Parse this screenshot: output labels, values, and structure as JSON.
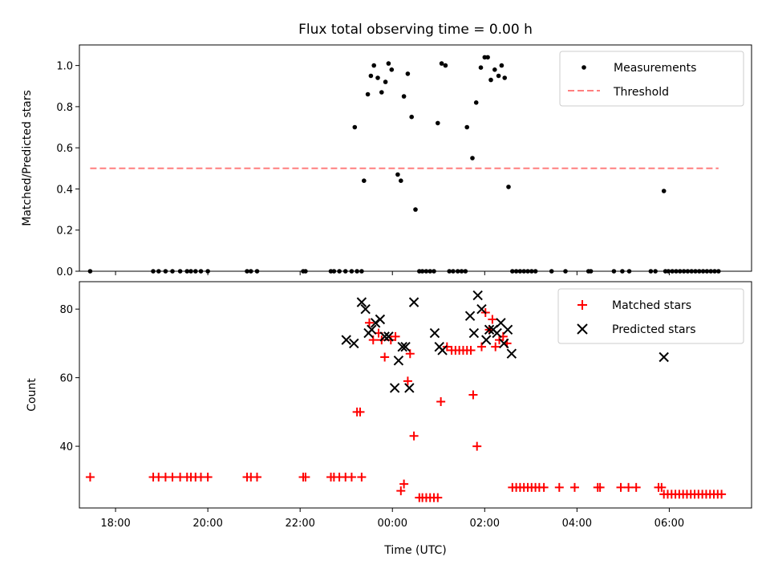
{
  "chart_data": [
    {
      "type": "scatter",
      "title": "Flux total observing time = 0.00 h",
      "xlabel": "",
      "ylabel": "Matched/Predicted stars",
      "xlim": [
        "17:13",
        "07:47"
      ],
      "ylim": [
        0,
        1.1
      ],
      "yticks": [
        "0.0",
        "0.2",
        "0.4",
        "0.6",
        "0.8",
        "1.0"
      ],
      "grid": false,
      "legend_position": "top-right",
      "series": [
        {
          "name": "Measurements",
          "marker": "dot",
          "color": "#000000",
          "points": [
            [
              "17:27",
              0.0
            ],
            [
              "18:49",
              0.0
            ],
            [
              "18:56",
              0.0
            ],
            [
              "19:05",
              0.0
            ],
            [
              "19:14",
              0.0
            ],
            [
              "19:24",
              0.0
            ],
            [
              "19:33",
              0.0
            ],
            [
              "19:38",
              0.0
            ],
            [
              "19:44",
              0.0
            ],
            [
              "19:51",
              0.0
            ],
            [
              "20:00",
              0.0
            ],
            [
              "20:51",
              0.0
            ],
            [
              "20:56",
              0.0
            ],
            [
              "21:04",
              0.0
            ],
            [
              "22:04",
              0.0
            ],
            [
              "22:07",
              0.0
            ],
            [
              "22:40",
              0.0
            ],
            [
              "22:44",
              0.0
            ],
            [
              "22:51",
              0.0
            ],
            [
              "22:59",
              0.0
            ],
            [
              "23:07",
              0.0
            ],
            [
              "23:11",
              0.7
            ],
            [
              "23:14",
              0.0
            ],
            [
              "23:20",
              0.0
            ],
            [
              "23:23",
              0.44
            ],
            [
              "23:28",
              0.86
            ],
            [
              "23:32",
              0.95
            ],
            [
              "23:36",
              1.0
            ],
            [
              "23:41",
              0.94
            ],
            [
              "23:46",
              0.87
            ],
            [
              "23:51",
              0.92
            ],
            [
              "23:55",
              1.01
            ],
            [
              "23:59",
              0.98
            ],
            [
              "00:07",
              0.47
            ],
            [
              "00:11",
              0.44
            ],
            [
              "00:15",
              0.85
            ],
            [
              "00:20",
              0.96
            ],
            [
              "00:25",
              0.75
            ],
            [
              "00:30",
              0.3
            ],
            [
              "00:35",
              0.0
            ],
            [
              "00:39",
              0.0
            ],
            [
              "00:44",
              0.0
            ],
            [
              "00:49",
              0.0
            ],
            [
              "00:54",
              0.0
            ],
            [
              "00:59",
              0.72
            ],
            [
              "01:04",
              1.01
            ],
            [
              "01:09",
              1.0
            ],
            [
              "01:14",
              0.0
            ],
            [
              "01:19",
              0.0
            ],
            [
              "01:25",
              0.0
            ],
            [
              "01:30",
              0.0
            ],
            [
              "01:35",
              0.0
            ],
            [
              "01:37",
              0.7
            ],
            [
              "01:44",
              0.55
            ],
            [
              "01:49",
              0.82
            ],
            [
              "01:55",
              0.99
            ],
            [
              "02:00",
              1.04
            ],
            [
              "02:04",
              1.04
            ],
            [
              "02:08",
              0.93
            ],
            [
              "02:13",
              0.98
            ],
            [
              "02:18",
              0.95
            ],
            [
              "02:22",
              1.0
            ],
            [
              "02:26",
              0.94
            ],
            [
              "02:31",
              0.41
            ],
            [
              "02:36",
              0.0
            ],
            [
              "02:41",
              0.0
            ],
            [
              "02:46",
              0.0
            ],
            [
              "02:51",
              0.0
            ],
            [
              "02:56",
              0.0
            ],
            [
              "03:01",
              0.0
            ],
            [
              "03:06",
              0.0
            ],
            [
              "03:27",
              0.0
            ],
            [
              "03:45",
              0.0
            ],
            [
              "04:15",
              0.0
            ],
            [
              "04:18",
              0.0
            ],
            [
              "04:48",
              0.0
            ],
            [
              "04:59",
              0.0
            ],
            [
              "05:08",
              0.0
            ],
            [
              "05:36",
              0.0
            ],
            [
              "05:42",
              0.0
            ],
            [
              "05:53",
              0.39
            ],
            [
              "05:55",
              0.0
            ],
            [
              "05:59",
              0.0
            ],
            [
              "06:04",
              0.0
            ],
            [
              "06:09",
              0.0
            ],
            [
              "06:14",
              0.0
            ],
            [
              "06:19",
              0.0
            ],
            [
              "06:24",
              0.0
            ],
            [
              "06:29",
              0.0
            ],
            [
              "06:34",
              0.0
            ],
            [
              "06:39",
              0.0
            ],
            [
              "06:44",
              0.0
            ],
            [
              "06:49",
              0.0
            ],
            [
              "06:54",
              0.0
            ],
            [
              "06:59",
              0.0
            ],
            [
              "07:04",
              0.0
            ]
          ]
        },
        {
          "name": "Threshold",
          "style": "dashed-line",
          "color": "#ff7f7f",
          "points": [
            [
              "17:27",
              0.5
            ],
            [
              "07:04",
              0.5
            ]
          ]
        }
      ]
    },
    {
      "type": "scatter",
      "title": "",
      "xlabel": "Time (UTC)",
      "ylabel": "Count",
      "xlim": [
        "17:13",
        "07:47"
      ],
      "ylim": [
        22,
        88
      ],
      "xticks": [
        "18:00",
        "20:00",
        "22:00",
        "00:00",
        "02:00",
        "04:00",
        "06:00"
      ],
      "yticks": [
        "40",
        "60",
        "80"
      ],
      "grid": false,
      "legend_position": "top-right",
      "series": [
        {
          "name": "Matched stars",
          "marker": "plus",
          "color": "#ff0000",
          "points": [
            [
              "17:27",
              31
            ],
            [
              "18:49",
              31
            ],
            [
              "18:56",
              31
            ],
            [
              "19:05",
              31
            ],
            [
              "19:14",
              31
            ],
            [
              "19:24",
              31
            ],
            [
              "19:33",
              31
            ],
            [
              "19:38",
              31
            ],
            [
              "19:44",
              31
            ],
            [
              "19:51",
              31
            ],
            [
              "20:00",
              31
            ],
            [
              "20:51",
              31
            ],
            [
              "20:56",
              31
            ],
            [
              "21:04",
              31
            ],
            [
              "22:04",
              31
            ],
            [
              "22:07",
              31
            ],
            [
              "22:40",
              31
            ],
            [
              "22:44",
              31
            ],
            [
              "22:51",
              31
            ],
            [
              "22:59",
              31
            ],
            [
              "23:07",
              31
            ],
            [
              "23:20",
              31
            ],
            [
              "23:14",
              50
            ],
            [
              "23:18",
              50
            ],
            [
              "23:30",
              76
            ],
            [
              "23:35",
              71
            ],
            [
              "23:42",
              73
            ],
            [
              "23:46",
              71
            ],
            [
              "23:50",
              66
            ],
            [
              "23:58",
              71
            ],
            [
              "00:04",
              72
            ],
            [
              "00:11",
              27
            ],
            [
              "00:15",
              29
            ],
            [
              "00:20",
              59
            ],
            [
              "00:23",
              67
            ],
            [
              "00:28",
              43
            ],
            [
              "00:35",
              25
            ],
            [
              "00:39",
              25
            ],
            [
              "00:44",
              25
            ],
            [
              "00:49",
              25
            ],
            [
              "00:54",
              25
            ],
            [
              "00:59",
              25
            ],
            [
              "01:03",
              53
            ],
            [
              "01:11",
              69
            ],
            [
              "01:17",
              68
            ],
            [
              "01:22",
              68
            ],
            [
              "01:27",
              68
            ],
            [
              "01:32",
              68
            ],
            [
              "01:37",
              68
            ],
            [
              "01:42",
              68
            ],
            [
              "01:45",
              55
            ],
            [
              "01:50",
              40
            ],
            [
              "01:56",
              69
            ],
            [
              "02:01",
              79
            ],
            [
              "02:06",
              74
            ],
            [
              "02:10",
              77
            ],
            [
              "02:14",
              69
            ],
            [
              "02:19",
              71
            ],
            [
              "02:24",
              72
            ],
            [
              "02:29",
              70
            ],
            [
              "02:36",
              28
            ],
            [
              "02:41",
              28
            ],
            [
              "02:46",
              28
            ],
            [
              "02:51",
              28
            ],
            [
              "02:56",
              28
            ],
            [
              "03:01",
              28
            ],
            [
              "03:06",
              28
            ],
            [
              "03:11",
              28
            ],
            [
              "03:17",
              28
            ],
            [
              "03:37",
              28
            ],
            [
              "03:57",
              28
            ],
            [
              "04:27",
              28
            ],
            [
              "04:30",
              28
            ],
            [
              "04:57",
              28
            ],
            [
              "05:07",
              28
            ],
            [
              "05:17",
              28
            ],
            [
              "05:46",
              28
            ],
            [
              "05:50",
              28
            ],
            [
              "05:53",
              26
            ],
            [
              "05:58",
              26
            ],
            [
              "06:03",
              26
            ],
            [
              "06:08",
              26
            ],
            [
              "06:13",
              26
            ],
            [
              "06:18",
              26
            ],
            [
              "06:23",
              26
            ],
            [
              "06:28",
              26
            ],
            [
              "06:33",
              26
            ],
            [
              "06:38",
              26
            ],
            [
              "06:43",
              26
            ],
            [
              "06:48",
              26
            ],
            [
              "06:53",
              26
            ],
            [
              "06:58",
              26
            ],
            [
              "07:03",
              26
            ],
            [
              "07:08",
              26
            ]
          ]
        },
        {
          "name": "Predicted stars",
          "marker": "x",
          "color": "#000000",
          "points": [
            [
              "23:00",
              71
            ],
            [
              "23:10",
              70
            ],
            [
              "23:20",
              82
            ],
            [
              "23:25",
              80
            ],
            [
              "23:29",
              73
            ],
            [
              "23:33",
              74
            ],
            [
              "23:38",
              76
            ],
            [
              "23:44",
              77
            ],
            [
              "23:50",
              72
            ],
            [
              "23:55",
              72
            ],
            [
              "00:03",
              57
            ],
            [
              "00:08",
              65
            ],
            [
              "00:13",
              69
            ],
            [
              "00:17",
              69
            ],
            [
              "00:22",
              57
            ],
            [
              "00:28",
              82
            ],
            [
              "00:55",
              73
            ],
            [
              "01:01",
              69
            ],
            [
              "01:05",
              68
            ],
            [
              "01:41",
              78
            ],
            [
              "01:46",
              73
            ],
            [
              "01:51",
              84
            ],
            [
              "01:56",
              80
            ],
            [
              "02:02",
              71
            ],
            [
              "02:06",
              74
            ],
            [
              "02:11",
              74
            ],
            [
              "02:16",
              73
            ],
            [
              "02:21",
              76
            ],
            [
              "02:25",
              70
            ],
            [
              "02:30",
              74
            ],
            [
              "02:35",
              67
            ],
            [
              "05:53",
              66
            ]
          ]
        }
      ]
    }
  ]
}
